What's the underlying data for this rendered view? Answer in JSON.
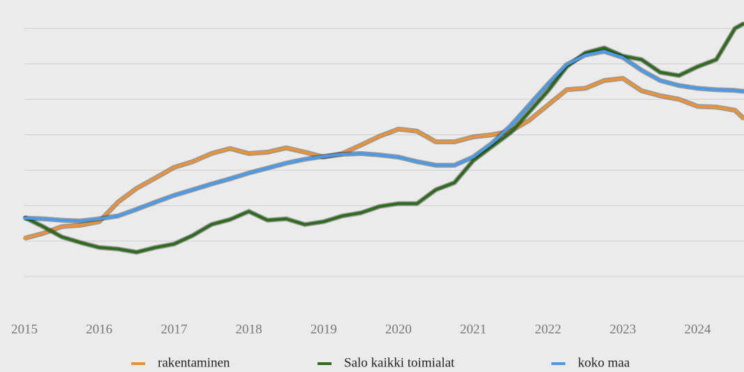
{
  "chart_data": {
    "type": "line",
    "x": [
      2015,
      2015.25,
      2015.5,
      2015.75,
      2016,
      2016.25,
      2016.5,
      2016.75,
      2017,
      2017.25,
      2017.5,
      2017.75,
      2018,
      2018.25,
      2018.5,
      2018.75,
      2019,
      2019.25,
      2019.5,
      2019.75,
      2020,
      2020.25,
      2020.5,
      2020.75,
      2021,
      2021.25,
      2021.5,
      2021.75,
      2022,
      2022.25,
      2022.5,
      2022.75,
      2023,
      2023.25,
      2023.5,
      2023.75,
      2024,
      2024.25,
      2024.5,
      2024.62
    ],
    "series": [
      {
        "name": "rakentaminen",
        "color": "#e8923a",
        "values": [
          2.08,
          2.22,
          2.41,
          2.45,
          2.55,
          3.1,
          3.49,
          3.78,
          4.08,
          4.24,
          4.47,
          4.61,
          4.47,
          4.51,
          4.63,
          4.51,
          4.37,
          4.47,
          4.71,
          4.96,
          5.16,
          5.1,
          4.8,
          4.8,
          4.94,
          5.0,
          5.1,
          5.41,
          5.84,
          6.27,
          6.31,
          6.53,
          6.59,
          6.24,
          6.1,
          6.0,
          5.8,
          5.78,
          5.69,
          5.45
        ]
      },
      {
        "name": "Salo kaikki toimialat",
        "color": "#2e6b1e",
        "values": [
          2.67,
          2.41,
          2.12,
          1.96,
          1.82,
          1.78,
          1.69,
          1.82,
          1.92,
          2.16,
          2.47,
          2.61,
          2.84,
          2.59,
          2.63,
          2.47,
          2.55,
          2.71,
          2.8,
          2.98,
          3.06,
          3.06,
          3.45,
          3.65,
          4.27,
          4.67,
          5.06,
          5.65,
          6.24,
          6.92,
          7.31,
          7.45,
          7.22,
          7.12,
          6.76,
          6.67,
          6.92,
          7.12,
          8.0,
          8.14
        ]
      },
      {
        "name": "koko maa",
        "color": "#4a9ae8",
        "values": [
          2.65,
          2.63,
          2.59,
          2.57,
          2.63,
          2.71,
          2.9,
          3.1,
          3.29,
          3.45,
          3.61,
          3.76,
          3.92,
          4.06,
          4.2,
          4.31,
          4.39,
          4.45,
          4.47,
          4.43,
          4.37,
          4.24,
          4.14,
          4.14,
          4.37,
          4.76,
          5.25,
          5.84,
          6.43,
          6.98,
          7.25,
          7.35,
          7.18,
          6.82,
          6.53,
          6.39,
          6.31,
          6.27,
          6.25,
          6.22
        ]
      }
    ],
    "xlim": [
      2015,
      2024.62
    ],
    "xticks": [
      2015,
      2016,
      2017,
      2018,
      2019,
      2020,
      2021,
      2022,
      2023,
      2024
    ],
    "ylim": [
      0,
      8.8
    ],
    "yticks": [
      1,
      2,
      3,
      4,
      5,
      6,
      7,
      8
    ],
    "grid": true,
    "legend": "bottom"
  }
}
